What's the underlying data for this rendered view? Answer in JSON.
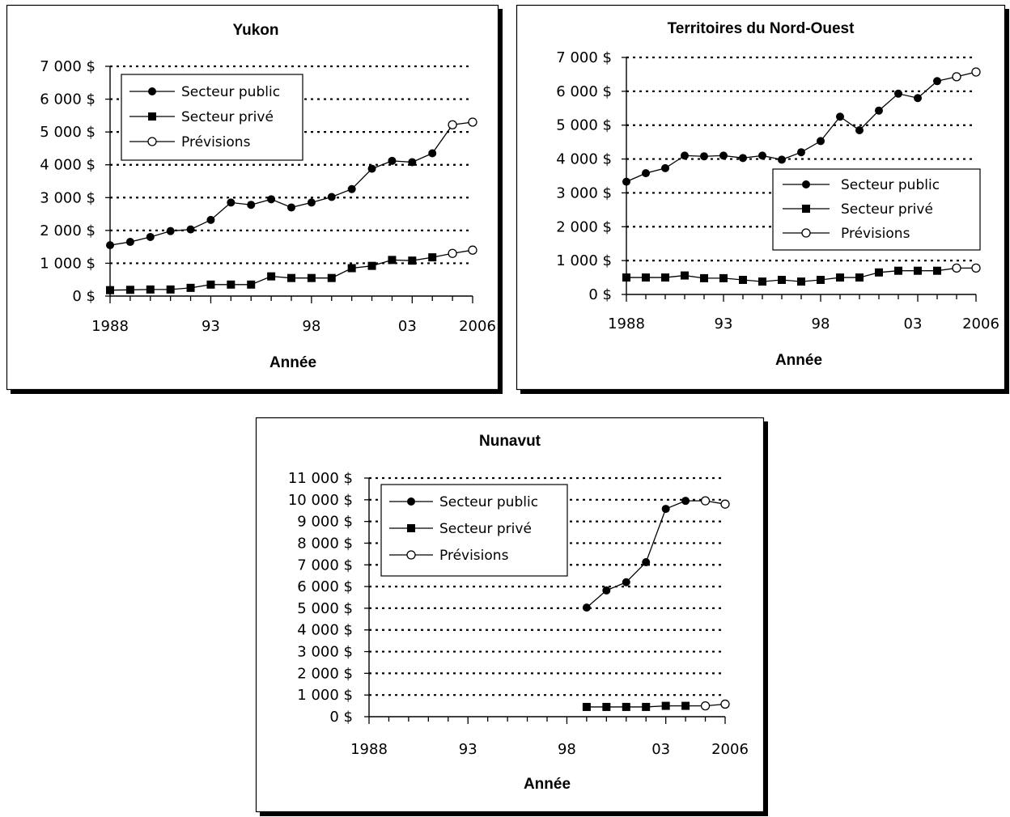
{
  "chart_data": [
    {
      "type": "line",
      "title": "Yukon",
      "xlabel": "Année",
      "ylabel": "",
      "x_ticks": [
        "1988",
        "93",
        "98",
        "03",
        "2006"
      ],
      "y_ticks": [
        "0 $",
        "1 000 $",
        "2 000 $",
        "3 000 $",
        "4 000 $",
        "5 000 $",
        "6 000 $",
        "7 000 $"
      ],
      "xlim": [
        1988,
        2006
      ],
      "ylim": [
        0,
        7000
      ],
      "grid": "horizontal-dotted",
      "legend_position": "top-left",
      "legend": [
        "Secteur public",
        "Secteur privé",
        "Prévisions"
      ],
      "series": [
        {
          "name": "Secteur public",
          "marker": "circle-filled",
          "x": [
            1988,
            1989,
            1990,
            1991,
            1992,
            1993,
            1994,
            1995,
            1996,
            1997,
            1998,
            1999,
            2000,
            2001,
            2002,
            2003,
            2004
          ],
          "y": [
            1550,
            1650,
            1800,
            1980,
            2030,
            2320,
            2850,
            2780,
            2950,
            2700,
            2850,
            3020,
            3260,
            3880,
            4120,
            4080,
            4350
          ]
        },
        {
          "name": "Secteur privé",
          "marker": "square-filled",
          "x": [
            1988,
            1989,
            1990,
            1991,
            1992,
            1993,
            1994,
            1995,
            1996,
            1997,
            1998,
            1999,
            2000,
            2001,
            2002,
            2003,
            2004
          ],
          "y": [
            180,
            190,
            200,
            200,
            250,
            350,
            350,
            350,
            600,
            550,
            550,
            550,
            850,
            920,
            1100,
            1080,
            1180
          ]
        },
        {
          "name": "Prévisions",
          "marker": "circle-open",
          "x": [
            2004,
            2005,
            2006
          ],
          "y": [
            4350,
            5220,
            5300
          ]
        },
        {
          "name": "Prévisions",
          "marker": "circle-open",
          "x": [
            2004,
            2005,
            2006
          ],
          "y": [
            1180,
            1300,
            1400
          ]
        }
      ]
    },
    {
      "type": "line",
      "title": "Territoires du Nord-Ouest",
      "xlabel": "Année",
      "ylabel": "",
      "x_ticks": [
        "1988",
        "93",
        "98",
        "03",
        "2006"
      ],
      "y_ticks": [
        "0 $",
        "1 000 $",
        "2 000 $",
        "3 000 $",
        "4 000 $",
        "5 000 $",
        "6 000 $",
        "7 000 $"
      ],
      "xlim": [
        1988,
        2006
      ],
      "ylim": [
        0,
        7000
      ],
      "grid": "horizontal-dotted",
      "legend_position": "center-right",
      "legend": [
        "Secteur public",
        "Secteur privé",
        "Prévisions"
      ],
      "series": [
        {
          "name": "Secteur public",
          "marker": "circle-filled",
          "x": [
            1988,
            1989,
            1990,
            1991,
            1992,
            1993,
            1994,
            1995,
            1996,
            1997,
            1998,
            1999,
            2000,
            2001,
            2002,
            2003,
            2004
          ],
          "y": [
            3330,
            3580,
            3730,
            4100,
            4080,
            4100,
            4030,
            4100,
            3980,
            4200,
            4530,
            5250,
            4850,
            5430,
            5930,
            5800,
            6300
          ]
        },
        {
          "name": "Secteur privé",
          "marker": "square-filled",
          "x": [
            1988,
            1989,
            1990,
            1991,
            1992,
            1993,
            1994,
            1995,
            1996,
            1997,
            1998,
            1999,
            2000,
            2001,
            2002,
            2003,
            2004
          ],
          "y": [
            500,
            500,
            500,
            560,
            480,
            480,
            430,
            380,
            430,
            380,
            430,
            500,
            500,
            650,
            700,
            700,
            700
          ]
        },
        {
          "name": "Prévisions",
          "marker": "circle-open",
          "x": [
            2004,
            2005,
            2006
          ],
          "y": [
            6300,
            6430,
            6570
          ]
        },
        {
          "name": "Prévisions",
          "marker": "circle-open",
          "x": [
            2004,
            2005,
            2006
          ],
          "y": [
            700,
            780,
            780
          ]
        }
      ]
    },
    {
      "type": "line",
      "title": "Nunavut",
      "xlabel": "Année",
      "ylabel": "",
      "x_ticks": [
        "1988",
        "93",
        "98",
        "03",
        "2006"
      ],
      "y_ticks": [
        "0 $",
        "1 000 $",
        "2 000 $",
        "3 000 $",
        "4 000 $",
        "5 000 $",
        "6 000 $",
        "7 000 $",
        "8 000 $",
        "9 000 $",
        "10 000 $",
        "11 000 $"
      ],
      "xlim": [
        1988,
        2006
      ],
      "ylim": [
        0,
        11000
      ],
      "grid": "horizontal-dotted",
      "legend_position": "top-left",
      "legend": [
        "Secteur public",
        "Secteur privé",
        "Prévisions"
      ],
      "series": [
        {
          "name": "Secteur public",
          "marker": "circle-filled",
          "x": [
            1999,
            2000,
            2001,
            2002,
            2003,
            2004
          ],
          "y": [
            5030,
            5820,
            6200,
            7120,
            9580,
            9950
          ]
        },
        {
          "name": "Secteur privé",
          "marker": "square-filled",
          "x": [
            1999,
            2000,
            2001,
            2002,
            2003,
            2004
          ],
          "y": [
            450,
            450,
            450,
            450,
            500,
            500
          ]
        },
        {
          "name": "Prévisions",
          "marker": "circle-open",
          "x": [
            2004,
            2005,
            2006
          ],
          "y": [
            9950,
            9950,
            9800
          ]
        },
        {
          "name": "Prévisions",
          "marker": "circle-open",
          "x": [
            2004,
            2005,
            2006
          ],
          "y": [
            500,
            500,
            580
          ]
        }
      ]
    }
  ]
}
